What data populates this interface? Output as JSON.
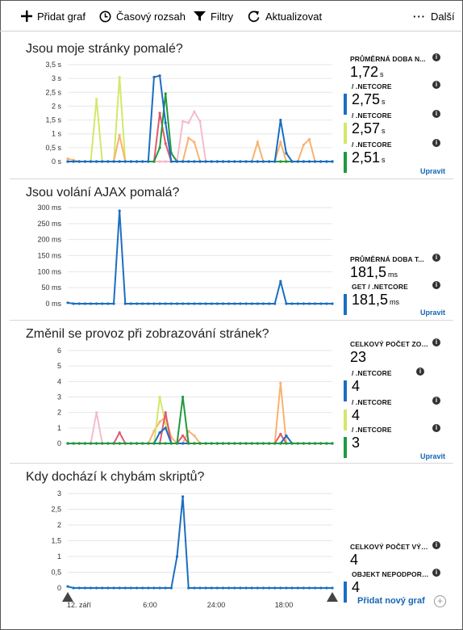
{
  "toolbar": {
    "add_chart": "Přidat graf",
    "time_range": "Časový rozsah",
    "filters": "Filtry",
    "refresh": "Aktualizovat",
    "more": "Další"
  },
  "colors": {
    "blue": "#1b6ec2",
    "lime": "#d4e76a",
    "green": "#1f9a3f",
    "orange": "#f9b26f",
    "pink": "#f4bccb",
    "red": "#e05a6e",
    "link": "#1565b5"
  },
  "panels": [
    {
      "title": "Jsou moje stránky pomalé?",
      "stats": [
        {
          "label": "PRŮMĚRNÁ DOBA N...",
          "value": "1,72",
          "unit": "s",
          "bar": ""
        },
        {
          "label": "/ .NETCORE",
          "value": "2,75",
          "unit": "s",
          "bar": "blue"
        },
        {
          "label": "/ .NETCORE",
          "value": "2,57",
          "unit": "s",
          "bar": "lime"
        },
        {
          "label": "/ .NETCORE",
          "value": "2,51",
          "unit": "s",
          "bar": "green"
        }
      ],
      "edit": "Upravit"
    },
    {
      "title": "Jsou volání AJAX pomalá?",
      "stats": [
        {
          "label": "PRŮMĚRNÁ DOBA T...",
          "value": "181,5",
          "unit": "ms",
          "bar": ""
        },
        {
          "label": "GET / .NETCORE",
          "value": "181,5",
          "unit": "ms",
          "bar": "blue"
        }
      ],
      "edit": "Upravit"
    },
    {
      "title": "Změnil se provoz při zobrazování stránek?",
      "stats": [
        {
          "label": "CELKOVÝ POČET ZOB...",
          "value": "23",
          "unit": "",
          "bar": ""
        },
        {
          "label": "/ .NETCORE",
          "value": "4",
          "unit": "",
          "bar": "blue"
        },
        {
          "label": "/ .NETCORE",
          "value": "4",
          "unit": "",
          "bar": "lime"
        },
        {
          "label": "/ .NETCORE",
          "value": "3",
          "unit": "",
          "bar": "green"
        }
      ],
      "edit": "Upravit"
    },
    {
      "title": "Kdy dochází k chybám skriptů?",
      "stats": [
        {
          "label": "CELKOVÝ POČET VÝJI...",
          "value": "4",
          "unit": "",
          "bar": ""
        },
        {
          "label": "OBJEKT NEPODPORU...",
          "value": "4",
          "unit": "",
          "bar": "blue"
        }
      ],
      "edit": ""
    }
  ],
  "add_new_chart": "Přidat nový graf",
  "add_icon": "+",
  "info_icon": "i",
  "chart_data": [
    {
      "type": "line",
      "title": "Jsou moje stránky pomalé?",
      "y_ticks": [
        "3,5 s",
        "3 s",
        "2,5 s",
        "2 s",
        "1,5 s",
        "1 s",
        "0,5 s",
        "0 s"
      ],
      "ylim": [
        0,
        3.5
      ],
      "npoints": 47,
      "series": [
        {
          "color": "lime",
          "values": {
            "5": 2.25,
            "9": 3.05
          }
        },
        {
          "color": "orange",
          "values": {
            "0": 0.1,
            "1": 0.05,
            "9": 0.95,
            "21": 0.85,
            "22": 0.7,
            "33": 0.7,
            "37": 0.7,
            "41": 0.6,
            "42": 0.8
          }
        },
        {
          "color": "pink",
          "values": {
            "20": 1.45,
            "21": 1.4,
            "22": 1.8,
            "23": 1.45
          }
        },
        {
          "color": "red",
          "values": {
            "16": 1.75,
            "17": 0.65
          }
        },
        {
          "color": "green",
          "values": {
            "16": 0.5,
            "17": 2.45,
            "18": 0.3
          }
        },
        {
          "color": "blue",
          "values": {
            "15": 3.05,
            "16": 3.1,
            "17": 1.4,
            "37": 1.5,
            "38": 0.3
          }
        }
      ]
    },
    {
      "type": "line",
      "title": "Jsou volání AJAX pomalá?",
      "y_ticks": [
        "300 ms",
        "250 ms",
        "200 ms",
        "150 ms",
        "100 ms",
        "50 ms",
        "0 ms"
      ],
      "ylim": [
        0,
        300
      ],
      "npoints": 47,
      "series": [
        {
          "color": "blue",
          "values": {
            "0": 3,
            "9": 290,
            "37": 70
          }
        }
      ]
    },
    {
      "type": "line",
      "title": "Změnil se provoz při zobrazování stránek?",
      "y_ticks": [
        "6",
        "5",
        "4",
        "3",
        "2",
        "1",
        "0"
      ],
      "ylim": [
        0,
        6
      ],
      "npoints": 47,
      "series": [
        {
          "color": "pink",
          "values": {
            "5": 2
          }
        },
        {
          "color": "orange",
          "values": {
            "15": 0.8,
            "16": 1.4,
            "17": 1.7,
            "18": 0.4,
            "21": 0.8,
            "22": 0.5,
            "37": 3.9
          }
        },
        {
          "color": "lime",
          "values": {
            "16": 3,
            "17": 1.3
          }
        },
        {
          "color": "red",
          "values": {
            "9": 0.7,
            "17": 2,
            "20": 0.5,
            "37": 0.6
          }
        },
        {
          "color": "blue",
          "values": {
            "16": 0.7,
            "17": 1,
            "38": 0.5
          }
        },
        {
          "color": "green",
          "values": {
            "20": 3
          }
        }
      ]
    },
    {
      "type": "line",
      "title": "Kdy dochází k chybám skriptů?",
      "y_ticks": [
        "3",
        "2,5",
        "2",
        "1,5",
        "1",
        "0,5",
        "0"
      ],
      "ylim": [
        0,
        3
      ],
      "npoints": 47,
      "series": [
        {
          "color": "blue",
          "values": {
            "0": 0.05,
            "19": 1,
            "20": 2.9
          }
        }
      ],
      "x_ticks": [
        "12. září",
        "6:00",
        "24:00",
        "18:00"
      ]
    }
  ]
}
